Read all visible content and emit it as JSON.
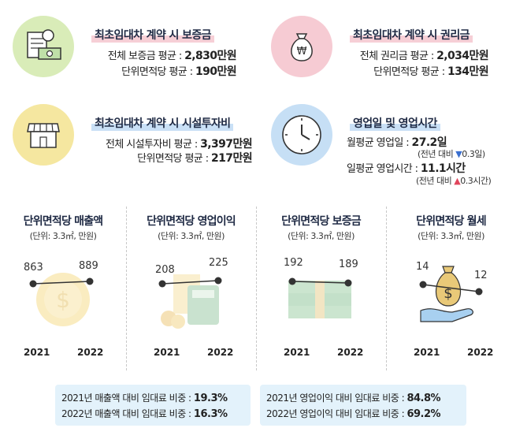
{
  "top_left": {
    "title": "최초임대차 계약 시 보증금",
    "row1_label": "전체 보증금 평균 : ",
    "row1_value": "2,830만원",
    "row2_label": "단위면적당 평균 : ",
    "row2_value": "190만원",
    "icon": "money-documents-icon"
  },
  "top_right": {
    "title": "최초임대차 계약 시 권리금",
    "row1_label": "전체 권리금 평균 : ",
    "row1_value": "2,034만원",
    "row2_label": "단위면적당 평균 : ",
    "row2_value": "134만원",
    "icon": "won-money-bag-icon"
  },
  "mid_left": {
    "title": "최초임대차 계약 시 시설투자비",
    "row1_label": "전체 시설투자비 평균 : ",
    "row1_value": "3,397만원",
    "row2_label": "단위면적당 평균 : ",
    "row2_value": "217만원",
    "icon": "storefront-icon"
  },
  "mid_right": {
    "title": "영업일 및 영업시간",
    "row1_label": "월평균 영업일 : ",
    "row1_value": "27.2일",
    "row1_note_prefix": "(전년 대비 ",
    "row1_note_arrow": "▼",
    "row1_note_value": "0.3일)",
    "row2_label": "일평균 영업시간 : ",
    "row2_value": "11.1시간",
    "row2_note_prefix": "(전년 대비 ",
    "row2_note_arrow": "▲",
    "row2_note_value": "0.3시간)",
    "icon": "clock-icon"
  },
  "columns": [
    {
      "title": "단위면적당 매출액",
      "unit": "(단위: 3.3㎡, 만원)",
      "v2021": "863",
      "v2022": "889",
      "icon": "coin-dollar-icon"
    },
    {
      "title": "단위면적당 영업이익",
      "unit": "(단위: 3.3㎡, 만원)",
      "v2021": "208",
      "v2022": "225",
      "icon": "calculator-coins-icon"
    },
    {
      "title": "단위면적당 보증금",
      "unit": "(단위: 3.3㎡, 만원)",
      "v2021": "192",
      "v2022": "189",
      "icon": "cash-stack-icon"
    },
    {
      "title": "단위면적당 월세",
      "unit": "(단위: 3.3㎡, 만원)",
      "v2021": "14",
      "v2022": "12",
      "icon": "money-bag-hand-icon"
    }
  ],
  "years": {
    "y1": "2021",
    "y2": "2022"
  },
  "bottom_left": {
    "line1_label": "2021년 매출액 대비 임대료 비중 : ",
    "line1_value": "19.3%",
    "line2_label": "2022년 매출액 대비 임대료 비중 : ",
    "line2_value": "16.3%"
  },
  "bottom_right": {
    "line1_label": "2021년 영업이익 대비 임대료 비중 : ",
    "line1_value": "84.8%",
    "line2_label": "2022년 영업이익 대비 임대료 비중 : ",
    "line2_value": "69.2%"
  },
  "colors": {
    "green_circle": "#d9ecb8",
    "pink_circle": "#f6cbd3",
    "yellow_circle": "#f5e7a0",
    "blue_circle": "#c6dff5",
    "down_arrow": "#3a6fd0",
    "up_arrow": "#e0455c",
    "box_bg": "#e3f2fb"
  }
}
